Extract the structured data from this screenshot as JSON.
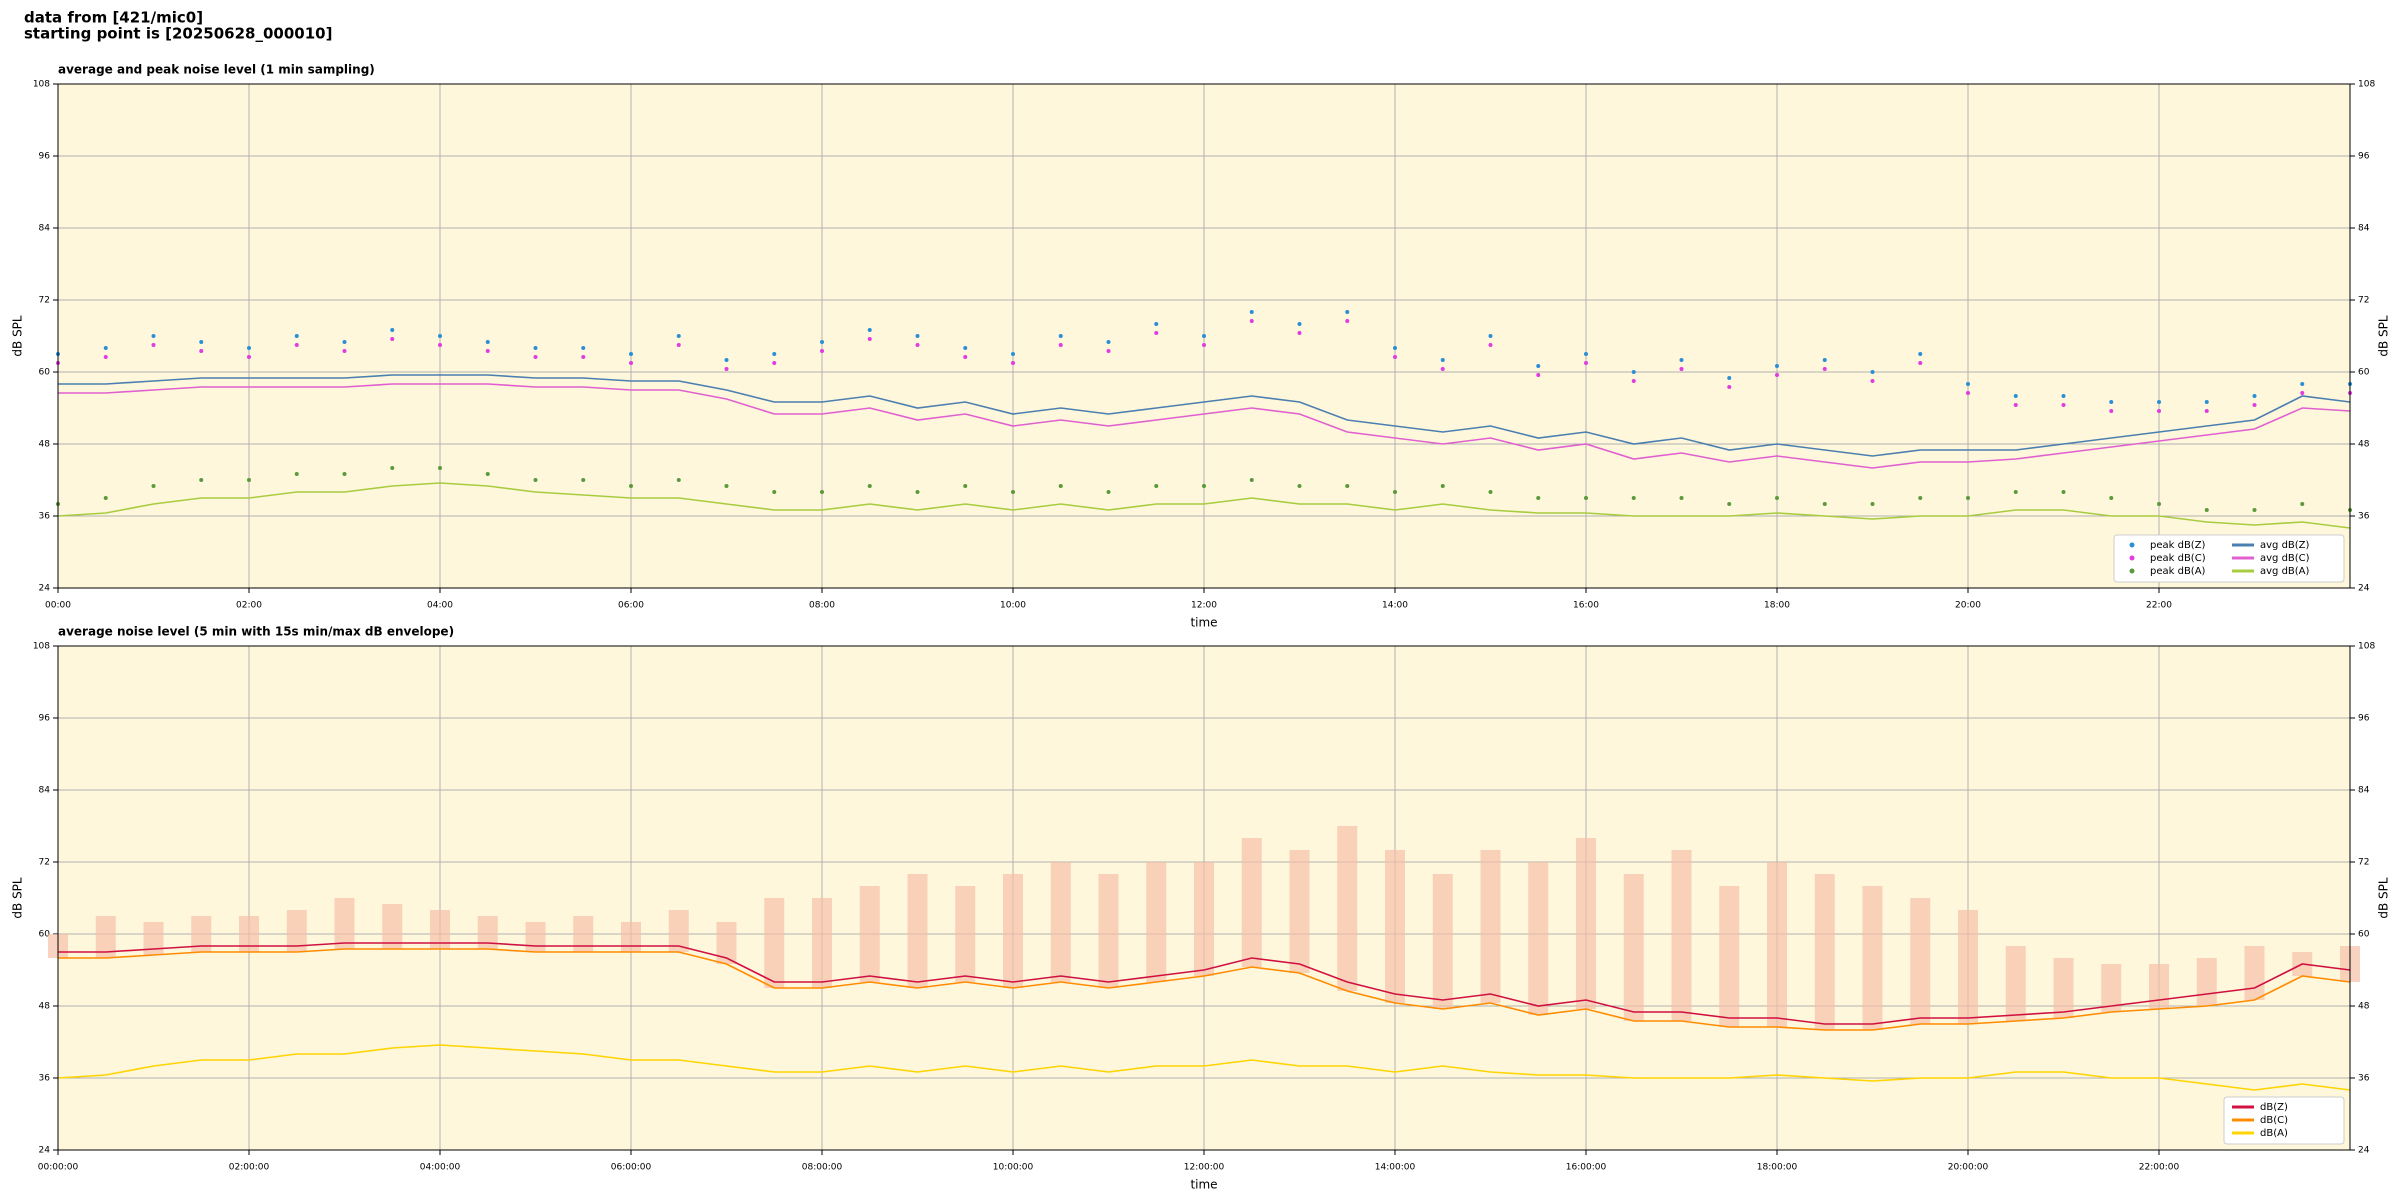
{
  "header": {
    "source": "data from [421/mic0]",
    "start": "starting point is [20250628_000010]"
  },
  "chart_data": [
    {
      "type": "line",
      "title": "average and peak noise level (1 min sampling)",
      "x_label": "time",
      "y_label": "dB SPL",
      "x": [
        0,
        0.5,
        1,
        1.5,
        2,
        2.5,
        3,
        3.5,
        4,
        4.5,
        5,
        5.5,
        6,
        6.5,
        7,
        7.5,
        8,
        8.5,
        9,
        9.5,
        10,
        10.5,
        11,
        11.5,
        12,
        12.5,
        13,
        13.5,
        14,
        14.5,
        15,
        15.5,
        16,
        16.5,
        17,
        17.5,
        18,
        18.5,
        19,
        19.5,
        20,
        20.5,
        21,
        21.5,
        22,
        22.5,
        23,
        23.5,
        24
      ],
      "xlim": [
        0,
        24
      ],
      "xticks": [
        {
          "value": 0,
          "label": "00:00"
        },
        {
          "value": 2,
          "label": "02:00"
        },
        {
          "value": 4,
          "label": "04:00"
        },
        {
          "value": 6,
          "label": "06:00"
        },
        {
          "value": 8,
          "label": "08:00"
        },
        {
          "value": 10,
          "label": "10:00"
        },
        {
          "value": 12,
          "label": "12:00"
        },
        {
          "value": 14,
          "label": "14:00"
        },
        {
          "value": 16,
          "label": "16:00"
        },
        {
          "value": 18,
          "label": "18:00"
        },
        {
          "value": 20,
          "label": "20:00"
        },
        {
          "value": 22,
          "label": "22:00"
        }
      ],
      "ylim": [
        24,
        108
      ],
      "yticks": [
        24,
        36,
        48,
        60,
        72,
        84,
        96,
        108
      ],
      "grid": true,
      "legend": "lower right",
      "legend_columns": 2,
      "series": [
        {
          "name": "peak dB(Z)",
          "type": "scatter",
          "color": "#2a8fd6",
          "values": [
            63,
            64,
            66,
            65,
            64,
            66,
            65,
            67,
            66,
            65,
            64,
            64,
            63,
            66,
            62,
            63,
            65,
            67,
            66,
            64,
            63,
            66,
            65,
            68,
            66,
            70,
            68,
            70,
            64,
            62,
            66,
            61,
            63,
            60,
            62,
            59,
            61,
            62,
            60,
            63,
            58,
            56,
            56,
            55,
            55,
            55,
            56,
            58,
            58
          ]
        },
        {
          "name": "peak dB(C)",
          "type": "scatter",
          "color": "#e03ce0",
          "values": [
            61.5,
            62.5,
            64.5,
            63.5,
            62.5,
            64.5,
            63.5,
            65.5,
            64.5,
            63.5,
            62.5,
            62.5,
            61.5,
            64.5,
            60.5,
            61.5,
            63.5,
            65.5,
            64.5,
            62.5,
            61.5,
            64.5,
            63.5,
            66.5,
            64.5,
            68.5,
            66.5,
            68.5,
            62.5,
            60.5,
            64.5,
            59.5,
            61.5,
            58.5,
            60.5,
            57.5,
            59.5,
            60.5,
            58.5,
            61.5,
            56.5,
            54.5,
            54.5,
            53.5,
            53.5,
            53.5,
            54.5,
            56.5,
            56.5
          ]
        },
        {
          "name": "peak dB(A)",
          "type": "scatter",
          "color": "#5a9a3a",
          "values": [
            38,
            39,
            41,
            42,
            42,
            43,
            43,
            44,
            44,
            43,
            42,
            42,
            41,
            42,
            41,
            40,
            40,
            41,
            40,
            41,
            40,
            41,
            40,
            41,
            41,
            42,
            41,
            41,
            40,
            41,
            40,
            39,
            39,
            39,
            39,
            38,
            39,
            38,
            38,
            39,
            39,
            40,
            40,
            39,
            38,
            37,
            37,
            38,
            37
          ]
        },
        {
          "name": "avg dB(Z)",
          "color": "#4a7fb0",
          "values": [
            58,
            58,
            58.5,
            59,
            59,
            59,
            59,
            59.5,
            59.5,
            59.5,
            59,
            59,
            58.5,
            58.5,
            57,
            55,
            55,
            56,
            54,
            55,
            53,
            54,
            53,
            54,
            55,
            56,
            55,
            52,
            51,
            50,
            51,
            49,
            50,
            48,
            49,
            47,
            48,
            47,
            46,
            47,
            47,
            47,
            48,
            49,
            50,
            51,
            52,
            56,
            55
          ]
        },
        {
          "name": "avg dB(C)",
          "color": "#e060d0",
          "values": [
            56.5,
            56.5,
            57,
            57.5,
            57.5,
            57.5,
            57.5,
            58,
            58,
            58,
            57.5,
            57.5,
            57,
            57,
            55.5,
            53,
            53,
            54,
            52,
            53,
            51,
            52,
            51,
            52,
            53,
            54,
            53,
            50,
            49,
            48,
            49,
            47,
            48,
            45.5,
            46.5,
            45,
            46,
            45,
            44,
            45,
            45,
            45.5,
            46.5,
            47.5,
            48.5,
            49.5,
            50.5,
            54,
            53.5
          ]
        },
        {
          "name": "avg dB(A)",
          "color": "#a8cc40",
          "values": [
            36,
            36.5,
            38,
            39,
            39,
            40,
            40,
            41,
            41.5,
            41,
            40,
            39.5,
            39,
            39,
            38,
            37,
            37,
            38,
            37,
            38,
            37,
            38,
            37,
            38,
            38,
            39,
            38,
            38,
            37,
            38,
            37,
            36.5,
            36.5,
            36,
            36,
            36,
            36.5,
            36,
            35.5,
            36,
            36,
            37,
            37,
            36,
            36,
            35,
            34.5,
            35,
            34
          ]
        }
      ]
    },
    {
      "type": "line",
      "title": "average noise level (5 min with 15s min/max dB envelope)",
      "x_label": "time",
      "y_label": "dB SPL",
      "x": [
        0,
        0.5,
        1,
        1.5,
        2,
        2.5,
        3,
        3.5,
        4,
        4.5,
        5,
        5.5,
        6,
        6.5,
        7,
        7.5,
        8,
        8.5,
        9,
        9.5,
        10,
        10.5,
        11,
        11.5,
        12,
        12.5,
        13,
        13.5,
        14,
        14.5,
        15,
        15.5,
        16,
        16.5,
        17,
        17.5,
        18,
        18.5,
        19,
        19.5,
        20,
        20.5,
        21,
        21.5,
        22,
        22.5,
        23,
        23.5,
        24
      ],
      "xlim": [
        0,
        24
      ],
      "xticks": [
        {
          "value": 0,
          "label": "00:00:00"
        },
        {
          "value": 2,
          "label": "02:00:00"
        },
        {
          "value": 4,
          "label": "04:00:00"
        },
        {
          "value": 6,
          "label": "06:00:00"
        },
        {
          "value": 8,
          "label": "08:00:00"
        },
        {
          "value": 10,
          "label": "10:00:00"
        },
        {
          "value": 12,
          "label": "12:00:00"
        },
        {
          "value": 14,
          "label": "14:00:00"
        },
        {
          "value": 16,
          "label": "16:00:00"
        },
        {
          "value": 18,
          "label": "18:00:00"
        },
        {
          "value": 20,
          "label": "20:00:00"
        },
        {
          "value": 22,
          "label": "22:00:00"
        }
      ],
      "ylim": [
        24,
        108
      ],
      "yticks": [
        24,
        36,
        48,
        60,
        72,
        84,
        96,
        108
      ],
      "grid": true,
      "legend": "lower right",
      "legend_columns": 1,
      "envelope": {
        "color": "#f5c0a8",
        "values": [
          60,
          63,
          62,
          63,
          63,
          64,
          66,
          65,
          64,
          63,
          62,
          63,
          62,
          64,
          62,
          66,
          66,
          68,
          70,
          68,
          70,
          72,
          70,
          72,
          72,
          76,
          74,
          78,
          74,
          70,
          74,
          72,
          76,
          70,
          74,
          68,
          72,
          70,
          68,
          66,
          64,
          58,
          56,
          55,
          55,
          56,
          58,
          57,
          58
        ]
      },
      "series": [
        {
          "name": "dB(Z)",
          "color": "#d01040",
          "values": [
            57,
            57,
            57.5,
            58,
            58,
            58,
            58.5,
            58.5,
            58.5,
            58.5,
            58,
            58,
            58,
            58,
            56,
            52,
            52,
            53,
            52,
            53,
            52,
            53,
            52,
            53,
            54,
            56,
            55,
            52,
            50,
            49,
            50,
            48,
            49,
            47,
            47,
            46,
            46,
            45,
            45,
            46,
            46,
            46.5,
            47,
            48,
            49,
            50,
            51,
            55,
            54
          ]
        },
        {
          "name": "dB(C)",
          "color": "#ff8c00",
          "values": [
            56,
            56,
            56.5,
            57,
            57,
            57,
            57.5,
            57.5,
            57.5,
            57.5,
            57,
            57,
            57,
            57,
            55,
            51,
            51,
            52,
            51,
            52,
            51,
            52,
            51,
            52,
            53,
            54.5,
            53.5,
            50.5,
            48.5,
            47.5,
            48.5,
            46.5,
            47.5,
            45.5,
            45.5,
            44.5,
            44.5,
            44,
            44,
            45,
            45,
            45.5,
            46,
            47,
            47.5,
            48,
            49,
            53,
            52
          ]
        },
        {
          "name": "dB(A)",
          "color": "#ffd400",
          "values": [
            36,
            36.5,
            38,
            39,
            39,
            40,
            40,
            41,
            41.5,
            41,
            40.5,
            40,
            39,
            39,
            38,
            37,
            37,
            38,
            37,
            38,
            37,
            38,
            37,
            38,
            38,
            39,
            38,
            38,
            37,
            38,
            37,
            36.5,
            36.5,
            36,
            36,
            36,
            36.5,
            36,
            35.5,
            36,
            36,
            37,
            37,
            36,
            36,
            35,
            34,
            35,
            34
          ]
        }
      ]
    }
  ]
}
